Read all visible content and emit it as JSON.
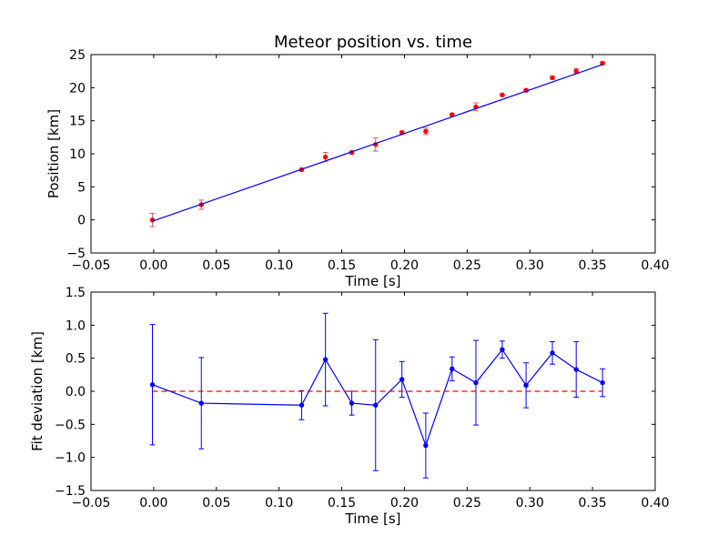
{
  "chart_data": [
    {
      "type": "scatter",
      "title": "Meteor position vs. time",
      "xlabel": "Time [s]",
      "ylabel": "Position [km]",
      "xlim": [
        -0.05,
        0.4
      ],
      "ylim": [
        -5,
        25
      ],
      "xticks": [
        -0.05,
        0.0,
        0.05,
        0.1,
        0.15,
        0.2,
        0.25,
        0.3,
        0.35,
        0.4
      ],
      "yticks": [
        -5,
        0,
        5,
        10,
        15,
        20,
        25
      ],
      "xtick_labels": [
        "−0.05",
        "0.00",
        "0.05",
        "0.10",
        "0.15",
        "0.20",
        "0.25",
        "0.30",
        "0.35",
        "0.40"
      ],
      "ytick_labels": [
        "−5",
        "0",
        "5",
        "10",
        "15",
        "20",
        "25"
      ],
      "grid": false,
      "series": [
        {
          "kind": "errorbar-points",
          "color": "#ff0000",
          "errcolor": "#cc6666",
          "points": [
            {
              "x": -0.001,
              "y": 0.0,
              "err": 1.0
            },
            {
              "x": 0.038,
              "y": 2.3,
              "err": 0.7
            },
            {
              "x": 0.118,
              "y": 7.6,
              "err": 0.2
            },
            {
              "x": 0.137,
              "y": 9.5,
              "err": 0.7
            },
            {
              "x": 0.158,
              "y": 10.2,
              "err": 0.2
            },
            {
              "x": 0.177,
              "y": 11.4,
              "err": 1.0
            },
            {
              "x": 0.198,
              "y": 13.2,
              "err": 0.25
            },
            {
              "x": 0.217,
              "y": 13.4,
              "err": 0.5
            },
            {
              "x": 0.238,
              "y": 15.9,
              "err": 0.2
            },
            {
              "x": 0.257,
              "y": 17.1,
              "err": 0.6
            },
            {
              "x": 0.278,
              "y": 18.9,
              "err": 0.15
            },
            {
              "x": 0.297,
              "y": 19.6,
              "err": 0.2
            },
            {
              "x": 0.318,
              "y": 21.5,
              "err": 0.2
            },
            {
              "x": 0.337,
              "y": 22.5,
              "err": 0.4
            },
            {
              "x": 0.358,
              "y": 23.7,
              "err": 0.2
            }
          ]
        },
        {
          "kind": "fit-line",
          "color": "#0000ff",
          "x": [
            -0.001,
            0.358
          ],
          "y": [
            -0.2,
            23.5
          ]
        }
      ]
    },
    {
      "type": "line",
      "title": "",
      "xlabel": "Time [s]",
      "ylabel": "Fit deviation [km]",
      "xlim": [
        -0.05,
        0.4
      ],
      "ylim": [
        -1.5,
        1.5
      ],
      "xticks": [
        -0.05,
        0.0,
        0.05,
        0.1,
        0.15,
        0.2,
        0.25,
        0.3,
        0.35,
        0.4
      ],
      "yticks": [
        -1.5,
        -1.0,
        -0.5,
        0.0,
        0.5,
        1.0,
        1.5
      ],
      "xtick_labels": [
        "−0.05",
        "0.00",
        "0.05",
        "0.10",
        "0.15",
        "0.20",
        "0.25",
        "0.30",
        "0.35",
        "0.40"
      ],
      "ytick_labels": [
        "−1.5",
        "−1.0",
        "−0.5",
        "0.0",
        "0.5",
        "1.0",
        "1.5"
      ],
      "grid": false,
      "series": [
        {
          "kind": "errorbar-line",
          "color": "#0000ff",
          "points": [
            {
              "x": -0.001,
              "y": 0.1,
              "err": 0.91
            },
            {
              "x": 0.038,
              "y": -0.18,
              "err": 0.69
            },
            {
              "x": 0.118,
              "y": -0.21,
              "err": 0.22
            },
            {
              "x": 0.137,
              "y": 0.48,
              "err": 0.7
            },
            {
              "x": 0.158,
              "y": -0.18,
              "err": 0.18
            },
            {
              "x": 0.177,
              "y": -0.21,
              "err": 0.99
            },
            {
              "x": 0.198,
              "y": 0.18,
              "err": 0.27
            },
            {
              "x": 0.217,
              "y": -0.82,
              "err": 0.49
            },
            {
              "x": 0.238,
              "y": 0.34,
              "err": 0.18
            },
            {
              "x": 0.257,
              "y": 0.13,
              "err": 0.64
            },
            {
              "x": 0.278,
              "y": 0.63,
              "err": 0.13
            },
            {
              "x": 0.297,
              "y": 0.09,
              "err": 0.34
            },
            {
              "x": 0.318,
              "y": 0.58,
              "err": 0.17
            },
            {
              "x": 0.337,
              "y": 0.33,
              "err": 0.42
            },
            {
              "x": 0.358,
              "y": 0.13,
              "err": 0.21
            }
          ]
        },
        {
          "kind": "reference-line",
          "color": "#ff0000",
          "dashed": true,
          "x": [
            -0.001,
            0.358
          ],
          "y": [
            0.0,
            0.0
          ]
        }
      ]
    }
  ]
}
